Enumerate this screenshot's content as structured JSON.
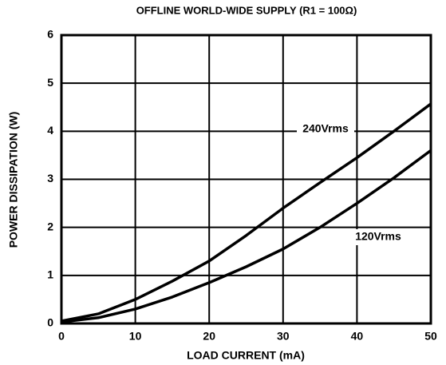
{
  "chart_data": {
    "type": "line",
    "title": "OFFLINE WORLD-WIDE SUPPLY (R1 = 100Ω)",
    "x_label": "LOAD CURRENT (mA)",
    "y_label": "POWER DISSIPATION (W)",
    "x": [
      0,
      5,
      10,
      15,
      20,
      25,
      30,
      35,
      40,
      45,
      50
    ],
    "series": [
      {
        "name": "240Vrms",
        "color": "#000000",
        "values": [
          0.05,
          0.2,
          0.5,
          0.88,
          1.3,
          1.83,
          2.4,
          2.93,
          3.45,
          4.0,
          4.57
        ]
      },
      {
        "name": "120Vrms",
        "color": "#000000",
        "values": [
          0.03,
          0.12,
          0.3,
          0.55,
          0.85,
          1.18,
          1.55,
          2.0,
          2.5,
          3.03,
          3.6
        ]
      }
    ],
    "xlim": [
      0,
      50
    ],
    "xticks": [
      0,
      10,
      20,
      30,
      40,
      50
    ],
    "ylim": [
      0,
      6
    ],
    "yticks": [
      0,
      1,
      2,
      3,
      4,
      5,
      6
    ],
    "grid": true
  }
}
